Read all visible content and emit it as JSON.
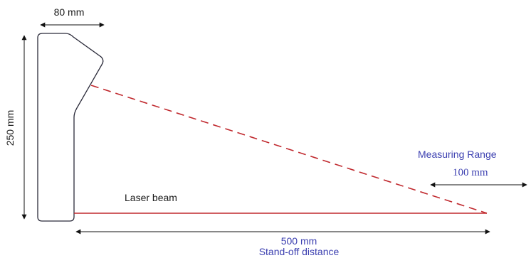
{
  "labels": {
    "width": "80 mm",
    "height": "250 mm",
    "laser_beam": "Laser beam",
    "measuring_range_title": "Measuring Range",
    "measuring_range_value": "100 mm",
    "standoff_value": "500 mm",
    "standoff_caption": "Stand-off distance"
  },
  "colors": {
    "outline": "#2b2b3a",
    "beam": "#c0282d",
    "dimension": "#111111",
    "blue_text": "#3b3fb0"
  }
}
